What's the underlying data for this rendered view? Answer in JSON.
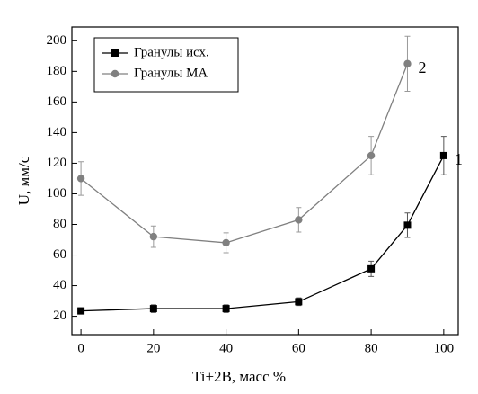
{
  "chart_data": {
    "type": "line",
    "xlabel": "Ti+2B, масс %",
    "ylabel": "U, мм/с",
    "series": [
      {
        "name": "Гранулы исх.",
        "color": "#000000",
        "marker": "square",
        "x": [
          0,
          20,
          40,
          60,
          80,
          90,
          100
        ],
        "values": [
          23.5,
          25,
          25,
          29.5,
          51,
          79.5,
          125
        ],
        "errors": [
          2,
          2.5,
          2.5,
          2.5,
          5,
          8,
          12.5
        ]
      },
      {
        "name": "Гранулы МА",
        "color": "#808080",
        "marker": "circle",
        "x": [
          0,
          20,
          40,
          60,
          80,
          90
        ],
        "values": [
          110,
          72,
          68,
          83,
          125,
          185
        ],
        "errors": [
          11,
          7,
          6.5,
          8,
          12.5,
          18
        ]
      }
    ],
    "annotations": [
      {
        "text": "1"
      },
      {
        "text": "2"
      }
    ],
    "xlim": [
      -2.5,
      104
    ],
    "xticks": [
      0,
      20,
      40,
      60,
      80,
      100
    ],
    "ylim": [
      8,
      209
    ],
    "yticks": [
      20,
      40,
      60,
      80,
      100,
      120,
      140,
      160,
      180,
      200
    ],
    "legend": "upper left"
  }
}
